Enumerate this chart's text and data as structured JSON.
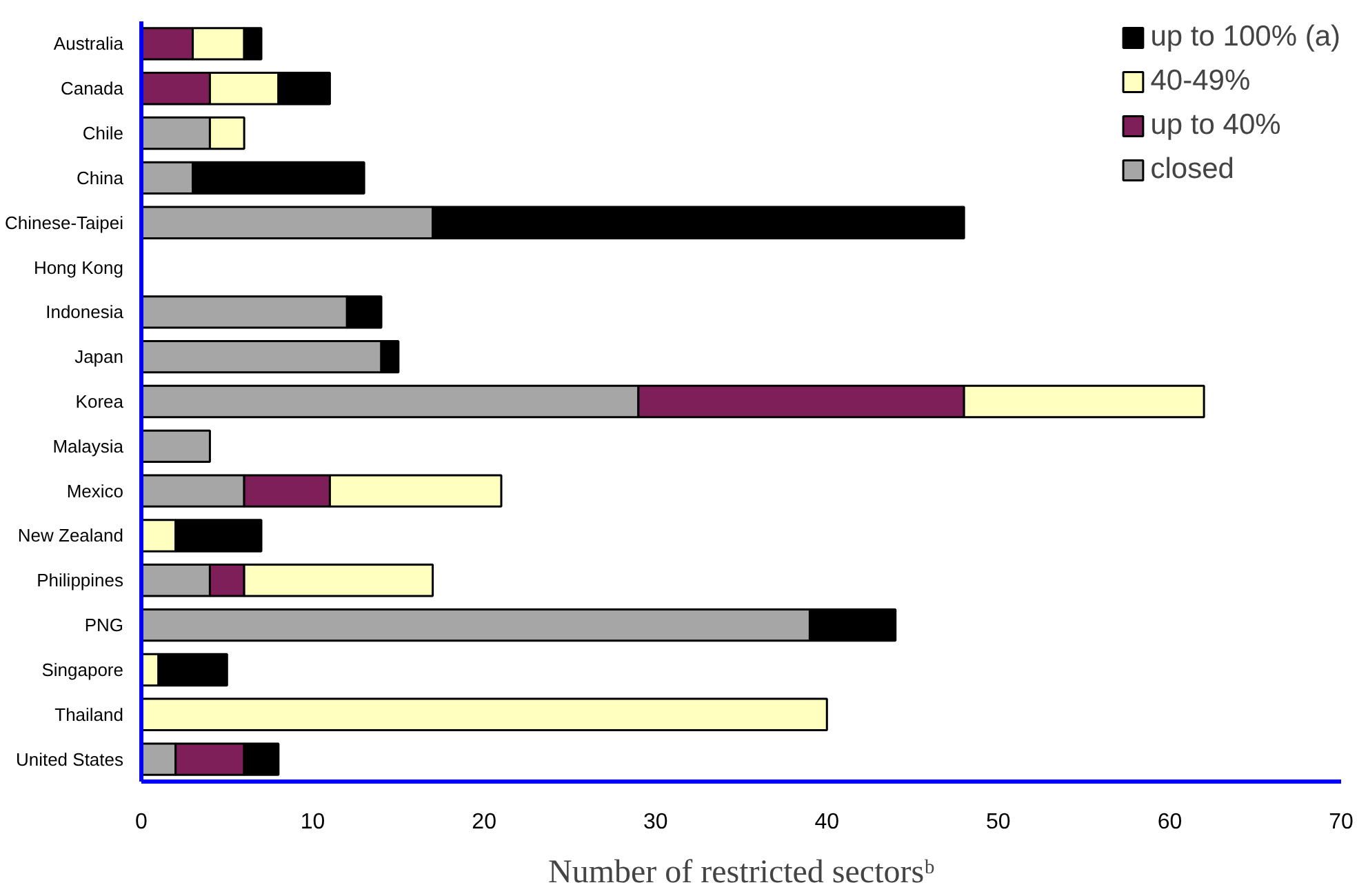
{
  "chart_data": {
    "type": "bar",
    "orientation": "horizontal",
    "stacked": true,
    "xlabel": "Number of restricted sectorsᵇ",
    "categories": [
      "Australia",
      "Canada",
      "Chile",
      "China",
      "Chinese-Taipei",
      "Hong Kong",
      "Indonesia",
      "Japan",
      "Korea",
      "Malaysia",
      "Mexico",
      "New Zealand",
      "Philippines",
      "PNG",
      "Singapore",
      "Thailand",
      "United States"
    ],
    "series": [
      {
        "name": "closed",
        "color": "#a6a6a6",
        "values": [
          0,
          0,
          4,
          3,
          17,
          0,
          12,
          14,
          29,
          4,
          6,
          0,
          4,
          39,
          0,
          0,
          2
        ]
      },
      {
        "name": "up to 40%",
        "color": "#7f1f5a",
        "values": [
          3,
          4,
          0,
          0,
          0,
          0,
          0,
          0,
          19,
          0,
          5,
          0,
          2,
          0,
          0,
          0,
          4
        ]
      },
      {
        "name": "40-49%",
        "color": "#ffffc0",
        "values": [
          3,
          4,
          2,
          0,
          0,
          0,
          0,
          0,
          14,
          0,
          10,
          2,
          11,
          0,
          1,
          40,
          0
        ]
      },
      {
        "name": "up to 100% (a)",
        "color": "#000000",
        "values": [
          1,
          3,
          0,
          10,
          31,
          0,
          2,
          1,
          0,
          0,
          0,
          5,
          0,
          5,
          4,
          0,
          2
        ]
      }
    ],
    "xlim": [
      0,
      70
    ],
    "xticks": [
      0,
      10,
      20,
      30,
      40,
      50,
      60,
      70
    ],
    "grid": false,
    "legend": "top right"
  }
}
